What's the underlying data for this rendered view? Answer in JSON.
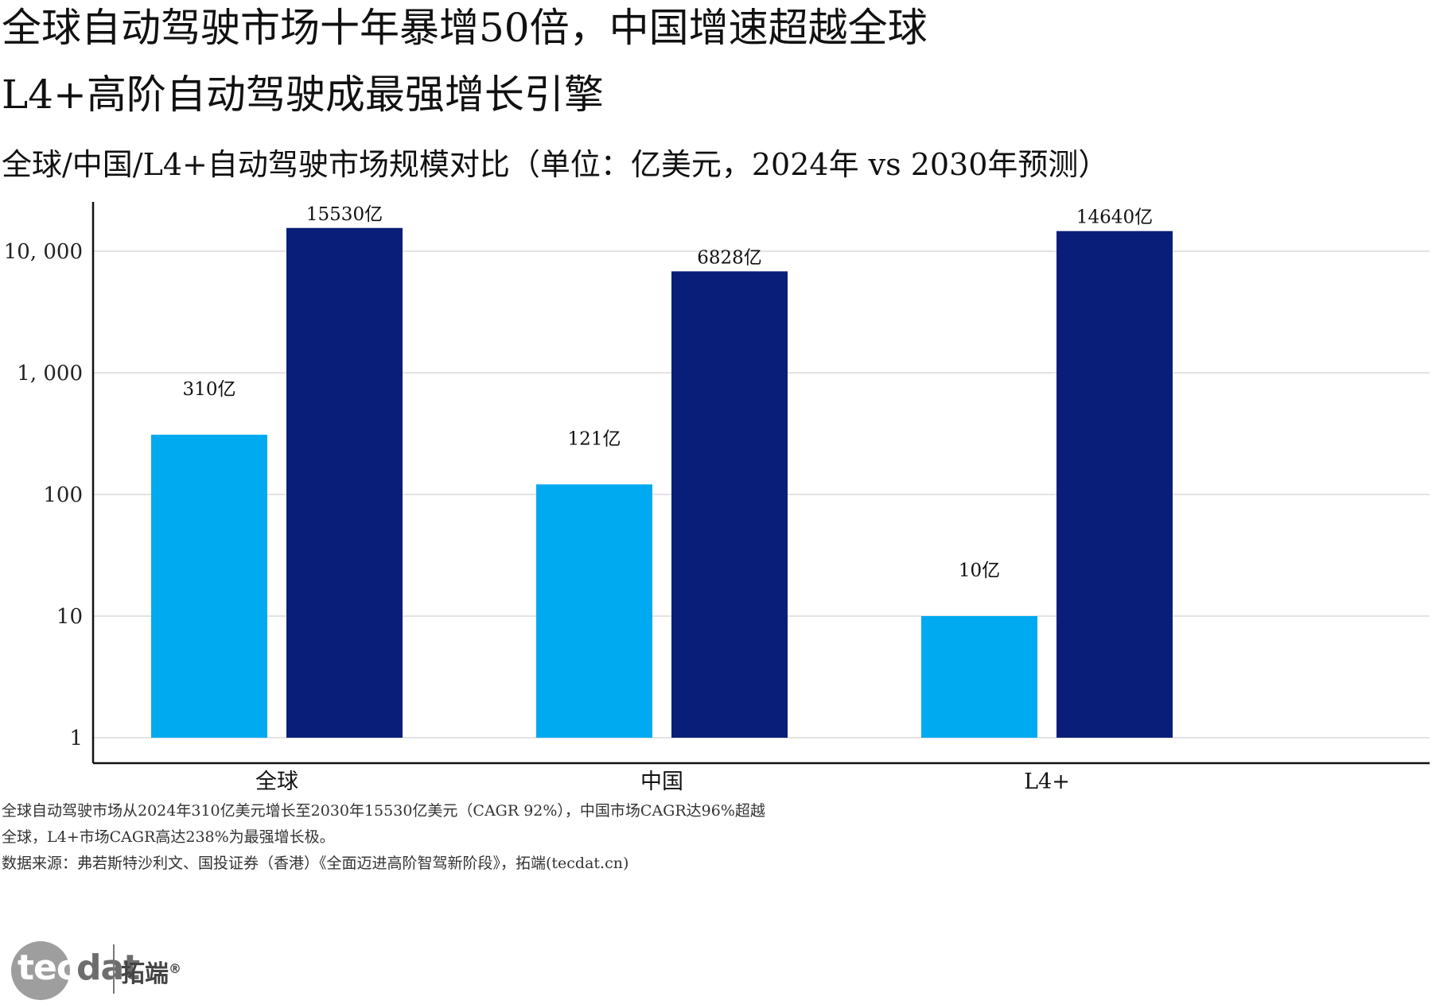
{
  "title_line1": "全球自动驾驶市场十年暴增50倍，中国增速超越全球",
  "title_line2": "L4+高阶自动驾驶成最强增长引擎",
  "subtitle": "全球/中国/L4+自动驾驶市场规模对比（单位：亿美元，2024年 vs 2030年预测）",
  "notes": [
    "全球自动驾驶市场从2024年310亿美元增长至2030年15530亿美元（CAGR 92%），中国市场CAGR达96%超越",
    "全球，L4+市场CAGR高达238%为最强增长极。",
    "数据来源：弗若斯特沙利文、国投证券（香港）《全面迈进高阶智驾新阶段》，拓端(tecdat.cn)"
  ],
  "logo": {
    "word_a": "tec",
    "word_b": "dat",
    "cn": "拓端",
    "mark": "®"
  },
  "chart_data": {
    "type": "bar",
    "categories": [
      "全球",
      "中国",
      "L4+"
    ],
    "series": [
      {
        "values": [
          310,
          121,
          10
        ],
        "labels": [
          "310亿",
          "121亿",
          "10亿"
        ],
        "color": "#00AAF0"
      },
      {
        "values": [
          15530,
          6828,
          14640
        ],
        "labels": [
          "15530亿",
          "6828亿",
          "14640亿"
        ],
        "color": "#081E78"
      }
    ],
    "yscale": "log",
    "ylim": [
      1,
      20000
    ],
    "yticks": [
      1,
      10,
      100,
      1000,
      10000
    ],
    "ytick_labels": [
      "1",
      "10",
      "100",
      "1, 000",
      "10, 000"
    ],
    "grid": true,
    "legend": "none"
  }
}
